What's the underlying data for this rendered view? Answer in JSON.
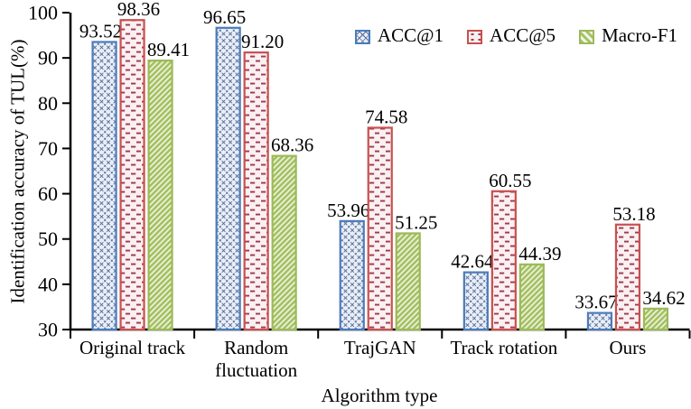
{
  "chart_data": {
    "type": "bar",
    "title": "",
    "xlabel": "Algorithm type",
    "ylabel": "Identification accuracy of TUL(%)",
    "ylim": [
      30,
      100
    ],
    "yticks": [
      30,
      40,
      50,
      60,
      70,
      80,
      90,
      100
    ],
    "grid": false,
    "legend_position": "top-right",
    "axis_color": "#000000",
    "categories": [
      "Original track",
      "Random fluctuation",
      "TrajGAN",
      "Track rotation",
      "Ours"
    ],
    "category_lines": [
      [
        "Original track"
      ],
      [
        "Random",
        "fluctuation"
      ],
      [
        "TrajGAN"
      ],
      [
        "Track rotation"
      ],
      [
        "Ours"
      ]
    ],
    "series": [
      {
        "name": "ACC@1",
        "values": [
          93.52,
          96.65,
          53.96,
          42.64,
          33.67
        ],
        "color": "#4a7cbb",
        "fill": "#e7eef8",
        "hatch_color": "#56688f",
        "hatch": "crosshatch"
      },
      {
        "name": "ACC@5",
        "values": [
          98.36,
          91.2,
          74.58,
          60.55,
          53.18
        ],
        "color": "#c8504f",
        "fill": "#faf0f1",
        "hatch_color": "#9e3950",
        "hatch": "dashes"
      },
      {
        "name": "Macro-F1",
        "values": [
          89.41,
          68.36,
          51.25,
          44.39,
          34.62
        ],
        "color": "#9cba58",
        "fill": "#f0f4e2",
        "hatch_color": "#a5c163",
        "hatch": "diagonal"
      }
    ]
  }
}
